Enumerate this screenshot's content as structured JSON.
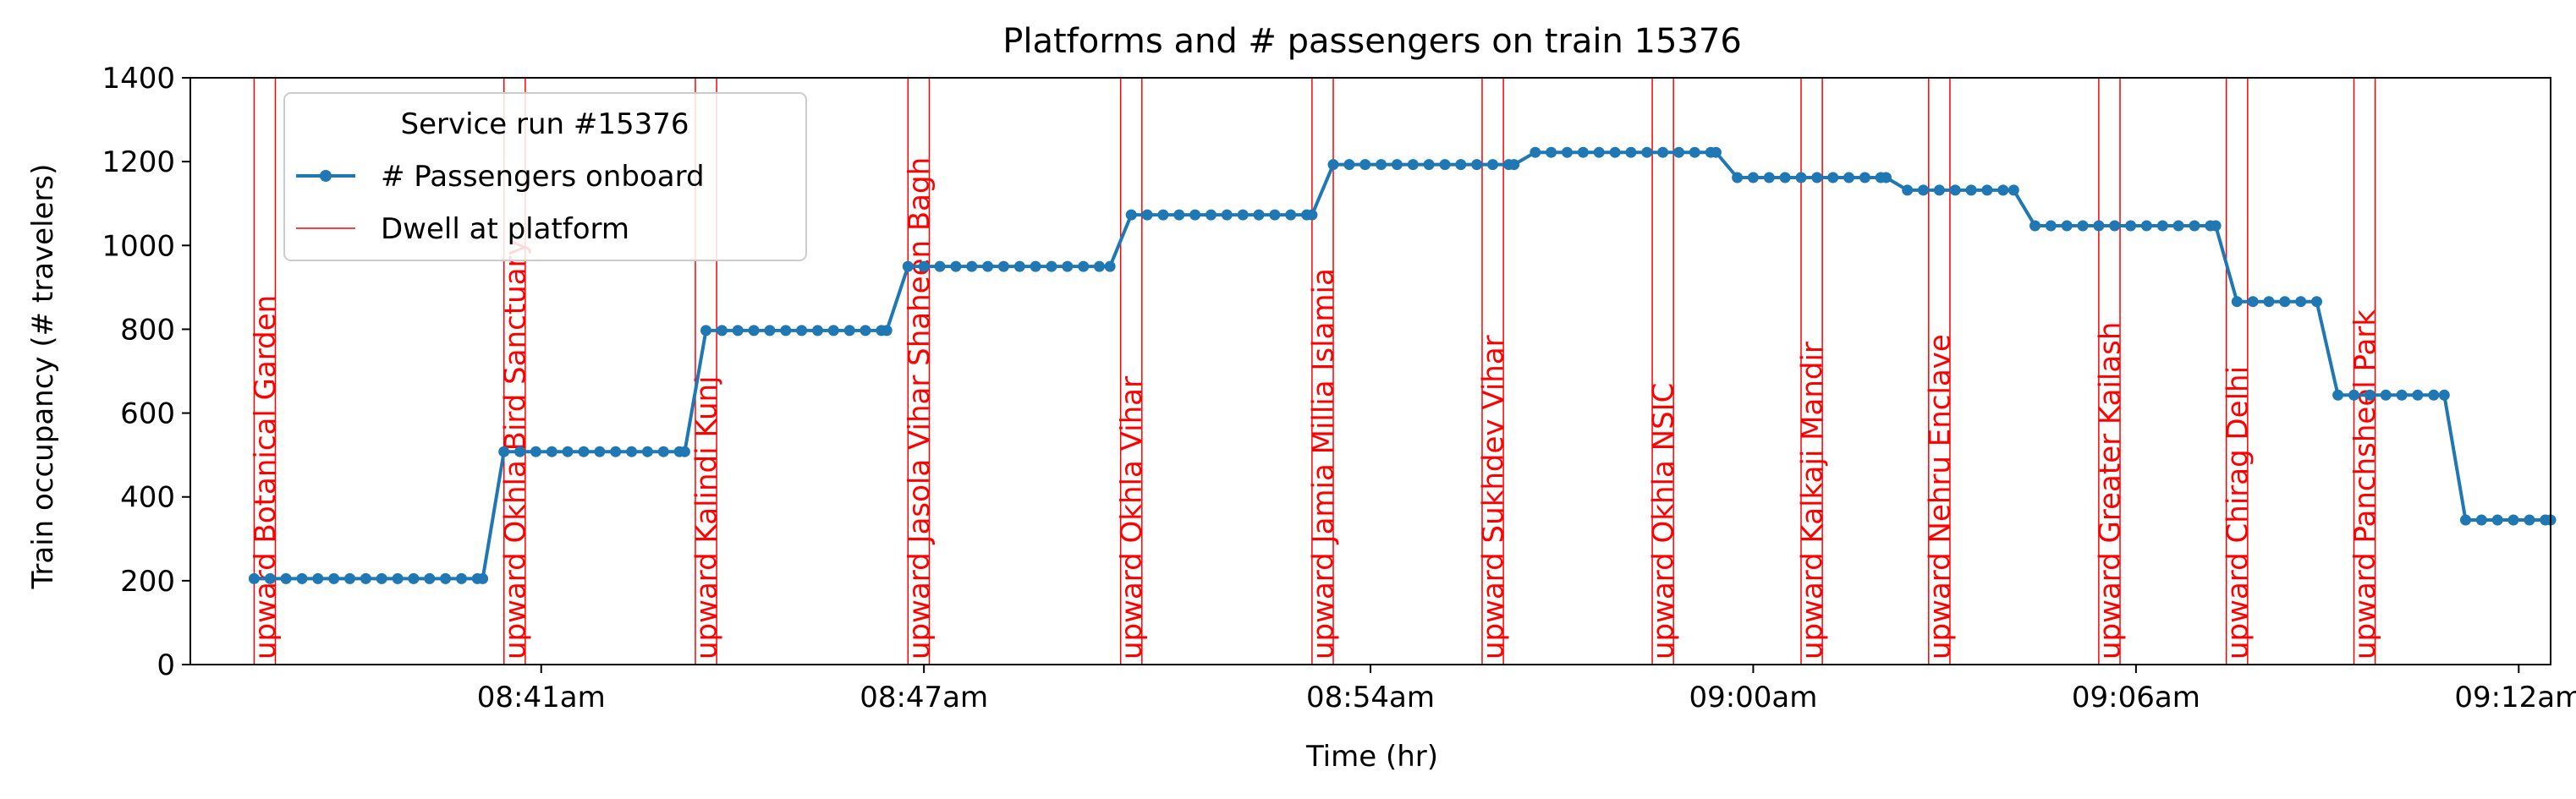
{
  "chart_data": {
    "type": "line",
    "title": "Platforms and # passengers on train 15376",
    "xlabel": "Time (hr)",
    "ylabel": "Train occupancy (# travelers)",
    "ylim": [
      0,
      1400
    ],
    "yticks": [
      0,
      200,
      400,
      600,
      800,
      1000,
      1200,
      1400
    ],
    "xlim": [
      "08:35:30",
      "09:12:30"
    ],
    "xticks": [
      {
        "t": "08:41:00",
        "label": "08:41am"
      },
      {
        "t": "08:47:00",
        "label": "08:47am"
      },
      {
        "t": "08:54:00",
        "label": "08:54am"
      },
      {
        "t": "09:00:00",
        "label": "09:00am"
      },
      {
        "t": "09:06:00",
        "label": "09:06am"
      },
      {
        "t": "09:12:00",
        "label": "09:12am"
      }
    ],
    "grid": false,
    "legend": {
      "placement": "upper-left",
      "title": "Service run #15376",
      "entries": [
        "# Passengers onboard",
        "Dwell at platform"
      ]
    },
    "colors": {
      "line": "#1f77b4",
      "dwell": "#ff0000"
    },
    "series": [
      {
        "name": "# Passengers onboard",
        "segments": [
          {
            "start": "08:36:30",
            "end": "08:40:05",
            "value": 205
          },
          {
            "start": "08:40:25",
            "end": "08:43:15",
            "value": 508
          },
          {
            "start": "08:43:35",
            "end": "08:46:25",
            "value": 797
          },
          {
            "start": "08:46:45",
            "end": "08:49:55",
            "value": 950
          },
          {
            "start": "08:50:15",
            "end": "08:53:05",
            "value": 1073
          },
          {
            "start": "08:53:25",
            "end": "08:56:15",
            "value": 1193
          },
          {
            "start": "08:56:35",
            "end": "08:59:25",
            "value": 1222
          },
          {
            "start": "08:59:45",
            "end": "09:02:05",
            "value": 1162
          },
          {
            "start": "09:02:25",
            "end": "09:04:05",
            "value": 1132
          },
          {
            "start": "09:04:25",
            "end": "09:07:15",
            "value": 1047
          },
          {
            "start": "09:07:35",
            "end": "09:08:50",
            "value": 866
          },
          {
            "start": "09:09:10",
            "end": "09:10:50",
            "value": 643
          },
          {
            "start": "09:11:10",
            "end": "09:12:30",
            "value": 345
          }
        ]
      }
    ],
    "dwells": [
      {
        "station": "upward Botanical Garden",
        "start": "08:36:30",
        "end": "08:36:50"
      },
      {
        "station": "upward Okhla Bird Sanctuary",
        "start": "08:40:25",
        "end": "08:40:45"
      },
      {
        "station": "upward Kalindi Kunj",
        "start": "08:43:25",
        "end": "08:43:45"
      },
      {
        "station": "upward Jasola Vihar Shaheen Bagh",
        "start": "08:46:45",
        "end": "08:47:05"
      },
      {
        "station": "upward Okhla Vihar",
        "start": "08:50:05",
        "end": "08:50:25"
      },
      {
        "station": "upward Jamia Millia Islamia",
        "start": "08:53:05",
        "end": "08:53:25"
      },
      {
        "station": "upward Sukhdev Vihar",
        "start": "08:55:45",
        "end": "08:56:05"
      },
      {
        "station": "upward Okhla NSIC",
        "start": "08:58:25",
        "end": "08:58:45"
      },
      {
        "station": "upward Kalkaji Mandir",
        "start": "09:00:45",
        "end": "09:01:05"
      },
      {
        "station": "upward Nehru Enclave",
        "start": "09:02:45",
        "end": "09:03:05"
      },
      {
        "station": "upward Greater Kailash",
        "start": "09:05:25",
        "end": "09:05:45"
      },
      {
        "station": "upward Chirag Delhi",
        "start": "09:07:25",
        "end": "09:07:45"
      },
      {
        "station": "upward Panchsheel Park",
        "start": "09:09:25",
        "end": "09:09:45"
      }
    ]
  }
}
